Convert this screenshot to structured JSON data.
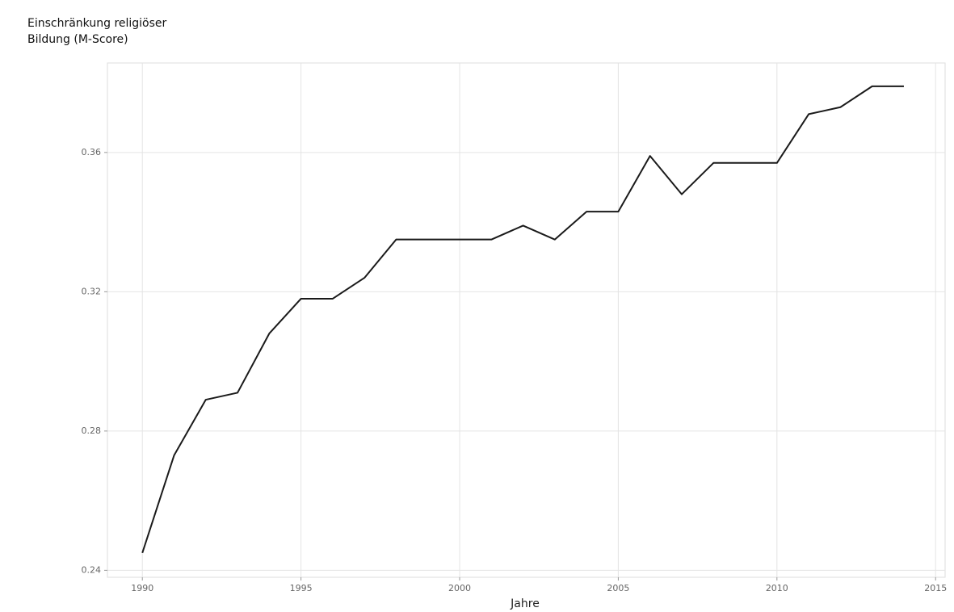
{
  "chart_data": {
    "type": "line",
    "ylabel": [
      "Einschränkung religiöser",
      "Bildung (M-Score)"
    ],
    "xlabel": "Jahre",
    "x": [
      1990,
      1991,
      1992,
      1993,
      1994,
      1995,
      1996,
      1997,
      1998,
      1999,
      2000,
      2001,
      2002,
      2003,
      2004,
      2005,
      2006,
      2007,
      2008,
      2009,
      2010,
      2011,
      2012,
      2013,
      2014
    ],
    "series": [
      {
        "color": "#1a1a1a",
        "values": [
          0.245,
          0.273,
          0.289,
          0.291,
          0.308,
          0.318,
          0.318,
          0.324,
          0.335,
          0.335,
          0.335,
          0.335,
          0.339,
          0.335,
          0.343,
          0.343,
          0.359,
          0.348,
          0.357,
          0.357,
          0.357,
          0.371,
          0.373,
          0.379,
          0.379
        ]
      }
    ],
    "xlim": [
      1988.9,
      2015.3
    ],
    "ylim": [
      0.238,
      0.3857
    ],
    "xticks": [
      1990,
      1995,
      2000,
      2005,
      2010,
      2015
    ],
    "yticks": [
      0.24,
      0.28,
      0.32,
      0.36
    ],
    "grid": true
  }
}
